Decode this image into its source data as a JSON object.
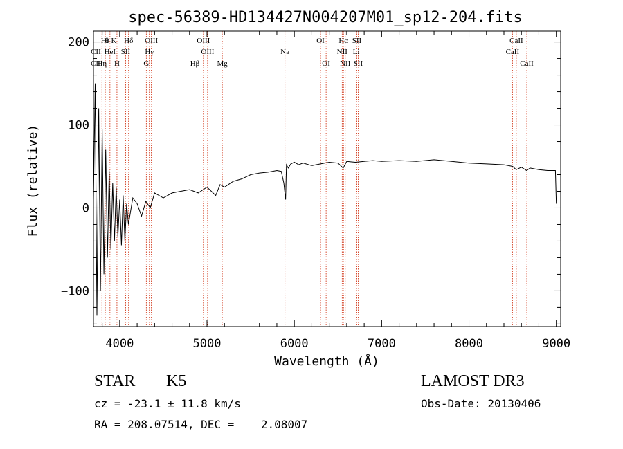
{
  "title": "spec-56389-HD134427N004207M01_sp12-204.fits",
  "info": {
    "class_label": "STAR",
    "subclass": "K5",
    "survey": "LAMOST DR3",
    "cz": "cz = -23.1 ± 11.8 km/s",
    "obs_date": "Obs-Date: 20130406",
    "radec": "RA = 208.07514, DEC =    2.08007"
  },
  "chart_data": {
    "type": "line",
    "title": "spec-56389-HD134427N004207M01_sp12-204.fits",
    "xlabel": "Wavelength (Å)",
    "ylabel": "Flux (relative)",
    "xlim": [
      3700,
      9050
    ],
    "ylim": [
      -143,
      213
    ],
    "x_ticks": [
      4000,
      5000,
      6000,
      7000,
      8000,
      9000
    ],
    "y_ticks": [
      -100,
      0,
      100,
      200
    ],
    "x_tick_labels": [
      "4000",
      "5000",
      "6000",
      "7000",
      "8000",
      "9000"
    ],
    "y_tick_labels": [
      "−100",
      "0",
      "100",
      "200"
    ],
    "series": [
      {
        "name": "flux",
        "x": [
          3700,
          3720,
          3740,
          3760,
          3780,
          3800,
          3820,
          3840,
          3860,
          3880,
          3900,
          3920,
          3940,
          3960,
          3980,
          4000,
          4020,
          4040,
          4060,
          4080,
          4100,
          4150,
          4200,
          4250,
          4300,
          4350,
          4400,
          4450,
          4500,
          4600,
          4700,
          4800,
          4900,
          5000,
          5100,
          5150,
          5200,
          5300,
          5400,
          5500,
          5600,
          5700,
          5800,
          5850,
          5880,
          5900,
          5910,
          5930,
          5960,
          6000,
          6050,
          6100,
          6200,
          6300,
          6400,
          6500,
          6560,
          6600,
          6700,
          6800,
          6900,
          7000,
          7200,
          7400,
          7600,
          7800,
          8000,
          8200,
          8400,
          8500,
          8540,
          8600,
          8660,
          8700,
          8800,
          8900,
          8990,
          9000
        ],
        "y": [
          10,
          150,
          -130,
          120,
          -100,
          95,
          -80,
          70,
          -60,
          45,
          -50,
          30,
          -40,
          25,
          -35,
          10,
          -45,
          15,
          -40,
          5,
          -20,
          12,
          5,
          -10,
          8,
          0,
          18,
          15,
          12,
          18,
          20,
          22,
          18,
          25,
          15,
          28,
          25,
          32,
          35,
          40,
          42,
          43,
          45,
          44,
          30,
          10,
          52,
          48,
          53,
          55,
          52,
          54,
          51,
          53,
          55,
          54,
          48,
          56,
          55,
          56,
          57,
          56,
          57,
          56,
          58,
          56,
          54,
          53,
          52,
          50,
          46,
          49,
          45,
          48,
          46,
          45,
          45,
          5
        ]
      }
    ],
    "lines": [
      {
        "label": "Hε",
        "x": 3835,
        "row": 0
      },
      {
        "label": "CII",
        "x": 3727,
        "row": 1
      },
      {
        "label": "CII",
        "x": 3727,
        "row": 2
      },
      {
        "label": "θ",
        "x": 3855,
        "row": 0
      },
      {
        "label": "K",
        "x": 3934,
        "row": 0
      },
      {
        "label": "HeI",
        "x": 3889,
        "row": 1
      },
      {
        "label": "Hη",
        "x": 3797,
        "row": 2
      },
      {
        "label": "H",
        "x": 3969,
        "row": 2
      },
      {
        "label": "SII",
        "x": 4068,
        "row": 1
      },
      {
        "label": "Hδ",
        "x": 4102,
        "row": 0
      },
      {
        "label": "OIII",
        "x": 4363,
        "row": 0
      },
      {
        "label": "Hγ",
        "x": 4340,
        "row": 1
      },
      {
        "label": "G",
        "x": 4305,
        "row": 2
      },
      {
        "label": "OIII",
        "x": 4959,
        "row": 0
      },
      {
        "label": "OIII",
        "x": 5007,
        "row": 1
      },
      {
        "label": "Hβ",
        "x": 4861,
        "row": 2
      },
      {
        "label": "Mg",
        "x": 5175,
        "row": 2
      },
      {
        "label": "Na",
        "x": 5893,
        "row": 1
      },
      {
        "label": "OI",
        "x": 6300,
        "row": 0
      },
      {
        "label": "OI",
        "x": 6364,
        "row": 2
      },
      {
        "label": "Hα",
        "x": 6563,
        "row": 0
      },
      {
        "label": "SII",
        "x": 6716,
        "row": 0
      },
      {
        "label": "NII",
        "x": 6548,
        "row": 1
      },
      {
        "label": "Li",
        "x": 6708,
        "row": 1
      },
      {
        "label": "NII",
        "x": 6583,
        "row": 2
      },
      {
        "label": "SII",
        "x": 6731,
        "row": 2
      },
      {
        "label": "CaII",
        "x": 8542,
        "row": 0
      },
      {
        "label": "CaII",
        "x": 8498,
        "row": 1
      },
      {
        "label": "CaII",
        "x": 8662,
        "row": 2
      }
    ]
  }
}
